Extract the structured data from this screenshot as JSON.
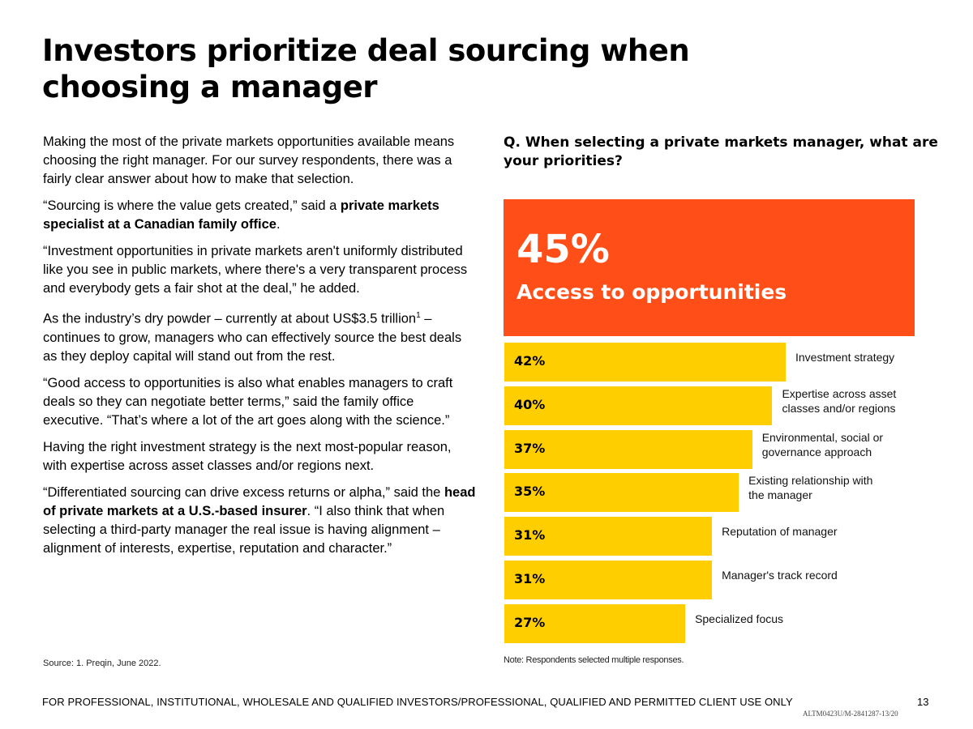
{
  "title": "Investors prioritize deal sourcing when choosing a manager",
  "body": {
    "p1": "Making the most of the private markets opportunities available means choosing the right manager. For our survey respondents, there was a fairly clear answer about how to make that selection.",
    "p2_a": "“Sourcing is where the value gets created,” said a ",
    "p2_b": "private markets specialist at a Canadian family office",
    "p2_c": ".",
    "p3": "“Investment opportunities in private markets aren't uniformly distributed like you see in public markets, where there's a very transparent process and everybody gets a fair shot at the deal,” he added.",
    "p4_a": "As the industry’s dry powder – currently at about US$3.5 trillion",
    "p4_sup": "1",
    "p4_b": " – continues to grow, managers who can effectively source the best deals as they deploy capital will stand out from the rest.",
    "p5": "“Good access to opportunities is also what enables managers to craft deals so they can negotiate better terms,” said the family office executive. “That’s where a lot of the art goes along with the science.”",
    "p6": "Having the right investment strategy is the next most-popular reason, with expertise across asset classes and/or regions next.",
    "p7_a": "“Differentiated sourcing can drive excess returns or alpha,” said the ",
    "p7_b": "head of private markets at a U.S.-based insurer",
    "p7_c": ". “I also think that when selecting a third-party manager the real issue is having alignment – alignment of interests, expertise, reputation and character.”"
  },
  "source": "Source: 1. Preqin, June 2022.",
  "question": "Q. When selecting a private markets manager, what are your priorities?",
  "chart_data": {
    "type": "bar",
    "orientation": "horizontal",
    "unit": "%",
    "highlight": {
      "label": "Access to opportunities",
      "value": 45,
      "display": "45%",
      "color": "#ff4e17"
    },
    "categories": [
      "Investment strategy",
      "Expertise across asset classes and/or regions",
      "Environmental, social or governance approach",
      "Existing relationship with the manager",
      "Reputation of manager",
      "Manager's track record",
      "Specialized focus"
    ],
    "values": [
      42,
      40,
      37,
      35,
      31,
      31,
      27
    ],
    "value_labels": [
      "42%",
      "40%",
      "37%",
      "35%",
      "31%",
      "31%",
      "27%"
    ],
    "bar_color": "#ffce00"
  },
  "note": "Note: Respondents selected multiple responses.",
  "footer": "FOR PROFESSIONAL, INSTITUTIONAL, WHOLESALE AND QUALIFIED INVESTORS/PROFESSIONAL, QUALIFIED AND PERMITTED CLIENT USE ONLY",
  "page_number": "13",
  "doc_code": "ALTM0423U/M-2841287-13/20"
}
